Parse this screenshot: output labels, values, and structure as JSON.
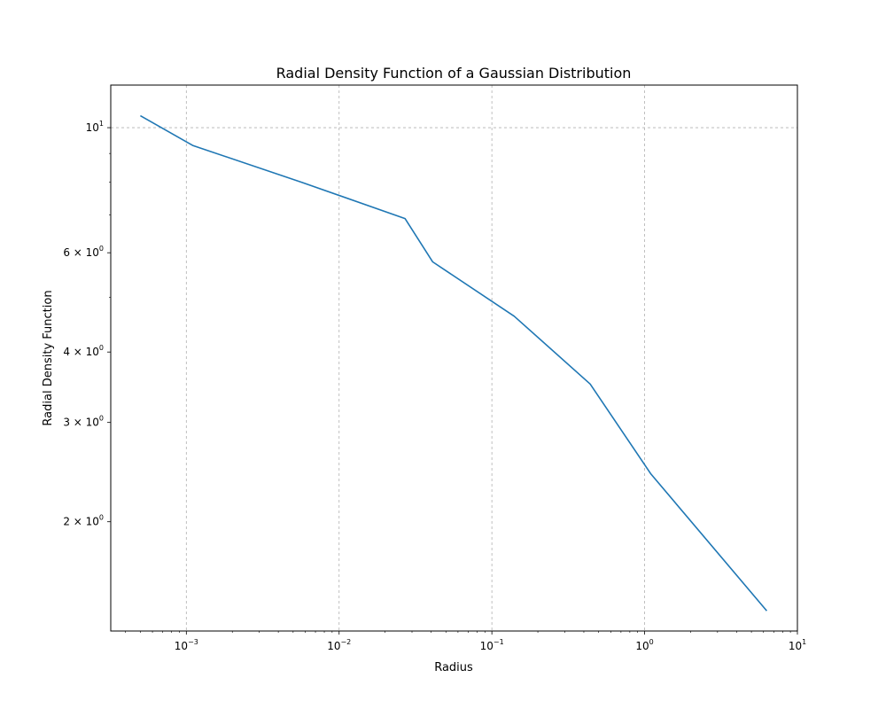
{
  "chart_data": {
    "type": "line",
    "title": "Radial Density Function of a Gaussian Distribution",
    "xlabel": "Radius",
    "ylabel": "Radial Density Function",
    "xscale": "log",
    "yscale": "log",
    "xlim": [
      0.00032,
      10
    ],
    "ylim": [
      1.28,
      11.9
    ],
    "grid": true,
    "grid_style": "dashed",
    "line_color": "#1f77b4",
    "x_ticks": [
      {
        "value": 0.001,
        "base": "10",
        "exp": "−3"
      },
      {
        "value": 0.01,
        "base": "10",
        "exp": "−2"
      },
      {
        "value": 0.1,
        "base": "10",
        "exp": "−1"
      },
      {
        "value": 1,
        "base": "10",
        "exp": "0"
      },
      {
        "value": 10,
        "base": "10",
        "exp": "1"
      }
    ],
    "y_ticks": [
      {
        "value": 10,
        "mantissa": "",
        "base": "10",
        "exp": "1"
      },
      {
        "value": 6,
        "mantissa": "6 × ",
        "base": "10",
        "exp": "0"
      },
      {
        "value": 4,
        "mantissa": "4 × ",
        "base": "10",
        "exp": "0"
      },
      {
        "value": 3,
        "mantissa": "3 × ",
        "base": "10",
        "exp": "0"
      },
      {
        "value": 2,
        "mantissa": "2 × ",
        "base": "10",
        "exp": "0"
      }
    ],
    "series": [
      {
        "x": [
          0.0005,
          0.0011,
          0.0057,
          0.027,
          0.041,
          0.14,
          0.44,
          1.1,
          6.3
        ],
        "y": [
          10.5,
          9.3,
          8.0,
          6.9,
          5.78,
          4.63,
          3.51,
          2.43,
          1.39
        ]
      }
    ]
  }
}
